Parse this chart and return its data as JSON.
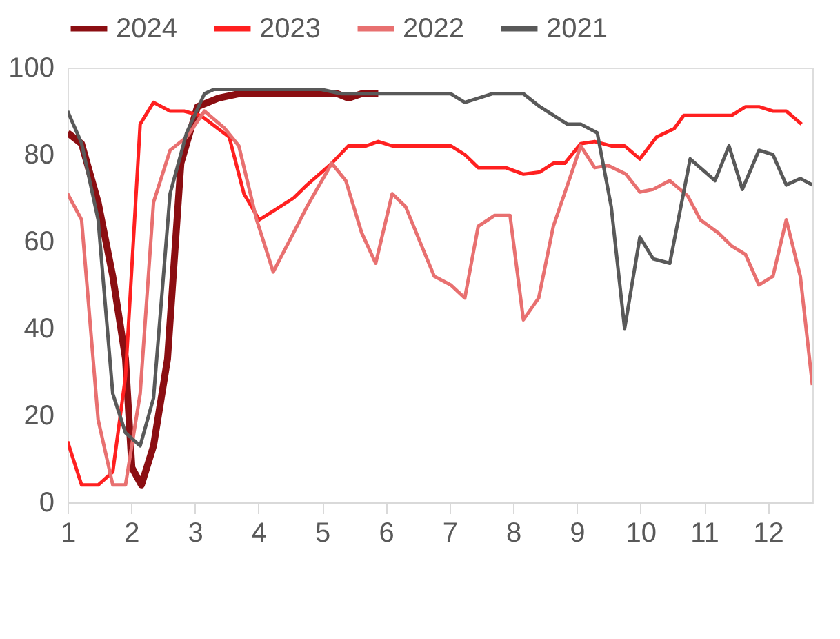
{
  "chart_data": {
    "type": "line",
    "xlim": [
      1,
      12.7
    ],
    "xticks": [
      1,
      2,
      3,
      4,
      5,
      6,
      7,
      8,
      9,
      10,
      11,
      12
    ],
    "ylim": [
      0,
      100
    ],
    "yticks": [
      0,
      20,
      40,
      60,
      80,
      100
    ],
    "grid": false,
    "legend": "top",
    "marker": "none",
    "line_style": "solid",
    "series": [
      {
        "name": "2024",
        "color": "#8b0e12",
        "x": [
          1,
          1.22,
          1.48,
          1.71,
          1.91,
          2.01,
          2.16,
          2.35,
          2.57,
          2.78,
          3.04,
          3.37,
          3.69,
          4.33,
          4.98,
          5.24,
          5.41,
          5.62,
          5.88
        ],
        "values": [
          85,
          82.5,
          69,
          52,
          33,
          8,
          4,
          13,
          33,
          78,
          91,
          93,
          94,
          94,
          94,
          94,
          93,
          94,
          94
        ]
      },
      {
        "name": "2023",
        "color": "#ff2020",
        "x": [
          1,
          1.22,
          1.48,
          1.71,
          1.91,
          2.14,
          2.35,
          2.61,
          2.83,
          3.09,
          3.54,
          3.77,
          4.01,
          4.23,
          4.55,
          4.76,
          5.15,
          5.41,
          5.69,
          5.88,
          6.1,
          7.02,
          7.24,
          7.45,
          7.88,
          8.16,
          8.42,
          8.63,
          8.81,
          9.06,
          9.28,
          9.54,
          9.75,
          9.99,
          10.25,
          10.53,
          10.68,
          11.43,
          11.65,
          11.86,
          12.08,
          12.29,
          12.53
        ],
        "values": [
          14,
          4,
          4,
          7,
          29,
          87,
          92,
          90,
          90,
          89,
          84,
          71,
          65,
          67,
          70,
          73,
          78,
          82,
          82,
          83,
          82,
          82,
          80,
          77,
          77,
          75.5,
          76,
          78,
          78,
          82.5,
          83,
          82,
          82,
          79,
          84,
          86,
          89,
          89,
          91,
          91,
          90,
          90,
          87
        ]
      },
      {
        "name": "2022",
        "color": "#e87070",
        "x": [
          1,
          1.22,
          1.48,
          1.71,
          1.91,
          2.14,
          2.35,
          2.61,
          2.87,
          3.15,
          3.47,
          3.69,
          3.97,
          4.23,
          4.55,
          4.76,
          5.15,
          5.37,
          5.62,
          5.84,
          6.1,
          6.31,
          6.59,
          6.76,
          7.02,
          7.24,
          7.45,
          7.71,
          7.95,
          8.16,
          8.4,
          8.63,
          8.89,
          9.06,
          9.28,
          9.49,
          9.77,
          9.99,
          10.2,
          10.46,
          10.74,
          10.94,
          11.22,
          11.43,
          11.65,
          11.86,
          12.08,
          12.29,
          12.51,
          12.7
        ],
        "values": [
          71,
          65,
          19,
          4,
          4,
          25,
          69,
          81,
          84,
          90,
          86,
          82,
          65,
          53,
          62,
          68,
          78,
          74,
          62,
          55,
          71,
          68,
          58,
          52,
          50,
          47,
          63.5,
          66,
          66,
          42,
          47,
          63.5,
          74.6,
          82,
          77,
          77.5,
          75.5,
          71.4,
          72,
          74,
          70.5,
          65,
          62,
          59,
          57,
          50,
          52,
          65,
          52,
          27
        ]
      },
      {
        "name": "2021",
        "color": "#595959",
        "x": [
          1,
          1.22,
          1.48,
          1.71,
          1.91,
          2.14,
          2.35,
          2.61,
          2.87,
          3.15,
          3.3,
          4.98,
          5.3,
          5.84,
          7.02,
          7.24,
          7.67,
          8.16,
          8.42,
          8.85,
          9.06,
          9.32,
          9.54,
          9.75,
          9.99,
          10.2,
          10.46,
          10.78,
          11.17,
          11.39,
          11.6,
          11.86,
          12.08,
          12.29,
          12.51,
          12.7
        ],
        "values": [
          90,
          82.6,
          65,
          25,
          16,
          13,
          24,
          71,
          85,
          94,
          95,
          95,
          94,
          94,
          94,
          92,
          94,
          94,
          91,
          87,
          87,
          85,
          68,
          40,
          61,
          56,
          55,
          79,
          74,
          82,
          72,
          81,
          80,
          73,
          74.5,
          73
        ]
      }
    ]
  }
}
